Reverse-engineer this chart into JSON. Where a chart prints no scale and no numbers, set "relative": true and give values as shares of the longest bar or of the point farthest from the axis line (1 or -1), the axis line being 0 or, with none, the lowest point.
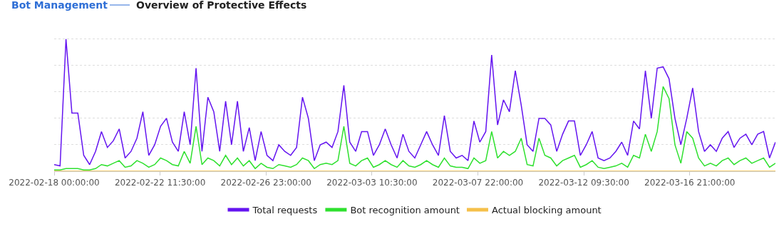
{
  "chart_data": {
    "type": "line",
    "title": "Bot Management",
    "subtitle": "Overview of Protective Effects",
    "relative": true,
    "xlim": [
      "2022-02-18T00:00",
      "2022-03-20T12:00"
    ],
    "xticks": [
      {
        "value": "2022-02-18T00:00",
        "label": "2022-02-18 00:00:00"
      },
      {
        "value": "2022-02-22T11:30",
        "label": "2022-02-22 11:30:00"
      },
      {
        "value": "2022-02-26T23:00",
        "label": "2022-02-26 23:00:00"
      },
      {
        "value": "2022-03-03T10:30",
        "label": "2022-03-03 10:30:00"
      },
      {
        "value": "2022-03-07T22:00",
        "label": "2022-03-07 22:00:00"
      },
      {
        "value": "2022-03-12T09:30",
        "label": "2022-03-12 09:30:00"
      },
      {
        "value": "2022-03-16T21:00",
        "label": "2022-03-16 21:00:00"
      }
    ],
    "grid": "y",
    "legend": "bottom",
    "marker": "none",
    "line_style": "solid",
    "series": [
      {
        "name": "Total requests",
        "color": "#6414f0",
        "values": [
          0.05,
          0.04,
          1.0,
          0.44,
          0.44,
          0.12,
          0.05,
          0.15,
          0.3,
          0.18,
          0.23,
          0.32,
          0.1,
          0.15,
          0.25,
          0.45,
          0.12,
          0.2,
          0.34,
          0.4,
          0.22,
          0.15,
          0.45,
          0.2,
          0.78,
          0.15,
          0.56,
          0.45,
          0.15,
          0.53,
          0.2,
          0.53,
          0.15,
          0.33,
          0.08,
          0.3,
          0.12,
          0.08,
          0.2,
          0.15,
          0.12,
          0.18,
          0.56,
          0.4,
          0.08,
          0.2,
          0.22,
          0.18,
          0.3,
          0.65,
          0.22,
          0.15,
          0.3,
          0.3,
          0.12,
          0.2,
          0.32,
          0.2,
          0.1,
          0.28,
          0.15,
          0.1,
          0.2,
          0.3,
          0.2,
          0.12,
          0.42,
          0.15,
          0.1,
          0.12,
          0.08,
          0.38,
          0.22,
          0.3,
          0.88,
          0.35,
          0.54,
          0.45,
          0.76,
          0.5,
          0.2,
          0.15,
          0.4,
          0.4,
          0.35,
          0.15,
          0.28,
          0.38,
          0.38,
          0.12,
          0.2,
          0.3,
          0.1,
          0.08,
          0.1,
          0.15,
          0.22,
          0.12,
          0.38,
          0.32,
          0.76,
          0.4,
          0.78,
          0.79,
          0.7,
          0.4,
          0.2,
          0.4,
          0.63,
          0.3,
          0.15,
          0.2,
          0.15,
          0.25,
          0.3,
          0.18,
          0.25,
          0.28,
          0.2,
          0.28,
          0.3,
          0.1,
          0.22
        ]
      },
      {
        "name": "Bot recognition amount",
        "color": "#2ee02e",
        "values": [
          0.01,
          0.01,
          0.02,
          0.02,
          0.02,
          0.01,
          0.01,
          0.02,
          0.05,
          0.04,
          0.06,
          0.08,
          0.03,
          0.04,
          0.08,
          0.06,
          0.03,
          0.05,
          0.1,
          0.08,
          0.05,
          0.04,
          0.15,
          0.06,
          0.34,
          0.05,
          0.1,
          0.08,
          0.04,
          0.12,
          0.05,
          0.1,
          0.04,
          0.08,
          0.02,
          0.06,
          0.03,
          0.02,
          0.05,
          0.04,
          0.03,
          0.05,
          0.1,
          0.08,
          0.02,
          0.05,
          0.06,
          0.05,
          0.08,
          0.34,
          0.06,
          0.04,
          0.08,
          0.1,
          0.03,
          0.05,
          0.08,
          0.05,
          0.03,
          0.08,
          0.04,
          0.03,
          0.05,
          0.08,
          0.05,
          0.03,
          0.1,
          0.04,
          0.03,
          0.03,
          0.02,
          0.1,
          0.06,
          0.08,
          0.3,
          0.1,
          0.15,
          0.12,
          0.15,
          0.25,
          0.05,
          0.04,
          0.25,
          0.12,
          0.1,
          0.04,
          0.08,
          0.1,
          0.12,
          0.03,
          0.05,
          0.08,
          0.03,
          0.02,
          0.03,
          0.04,
          0.06,
          0.03,
          0.12,
          0.1,
          0.28,
          0.15,
          0.3,
          0.64,
          0.55,
          0.2,
          0.06,
          0.3,
          0.25,
          0.1,
          0.04,
          0.06,
          0.04,
          0.08,
          0.1,
          0.05,
          0.08,
          0.1,
          0.06,
          0.08,
          0.1,
          0.03,
          0.06
        ]
      },
      {
        "name": "Actual blocking amount",
        "color": "#f5c04a",
        "values": [
          0,
          0,
          0,
          0,
          0,
          0,
          0,
          0,
          0,
          0,
          0,
          0,
          0,
          0,
          0,
          0,
          0,
          0,
          0,
          0,
          0,
          0,
          0,
          0,
          0,
          0,
          0,
          0,
          0,
          0,
          0,
          0,
          0,
          0,
          0,
          0,
          0,
          0,
          0,
          0,
          0,
          0,
          0,
          0,
          0,
          0,
          0,
          0,
          0,
          0,
          0,
          0,
          0,
          0,
          0,
          0,
          0,
          0,
          0,
          0,
          0,
          0,
          0,
          0,
          0,
          0,
          0,
          0,
          0,
          0,
          0,
          0,
          0,
          0,
          0,
          0,
          0,
          0,
          0,
          0,
          0,
          0,
          0,
          0,
          0,
          0,
          0,
          0,
          0,
          0,
          0,
          0,
          0,
          0,
          0,
          0,
          0,
          0,
          0,
          0,
          0,
          0,
          0,
          0,
          0,
          0,
          0,
          0,
          0,
          0,
          0,
          0,
          0,
          0,
          0,
          0,
          0,
          0,
          0,
          0,
          0,
          0,
          0
        ]
      }
    ],
    "x": [
      "2022-02-18T00:00",
      "2022-02-18T06:00",
      "2022-02-18T12:00",
      "2022-02-18T18:00",
      "2022-02-19T00:00",
      "2022-02-19T06:00",
      "2022-02-19T12:00",
      "2022-02-19T18:00",
      "2022-02-20T00:00",
      "2022-02-20T06:00",
      "2022-02-20T12:00",
      "2022-02-20T18:00",
      "2022-02-21T00:00",
      "2022-02-21T06:00",
      "2022-02-21T12:00",
      "2022-02-21T18:00",
      "2022-02-22T00:00",
      "2022-02-22T06:00",
      "2022-02-22T12:00",
      "2022-02-22T18:00",
      "2022-02-23T00:00",
      "2022-02-23T06:00",
      "2022-02-23T12:00",
      "2022-02-23T18:00",
      "2022-02-24T00:00",
      "2022-02-24T06:00",
      "2022-02-24T12:00",
      "2022-02-24T18:00",
      "2022-02-25T00:00",
      "2022-02-25T06:00",
      "2022-02-25T12:00",
      "2022-02-25T18:00",
      "2022-02-26T00:00",
      "2022-02-26T06:00",
      "2022-02-26T12:00",
      "2022-02-26T18:00",
      "2022-02-27T00:00",
      "2022-02-27T06:00",
      "2022-02-27T12:00",
      "2022-02-27T18:00",
      "2022-02-28T00:00",
      "2022-02-28T06:00",
      "2022-02-28T12:00",
      "2022-02-28T18:00",
      "2022-03-01T00:00",
      "2022-03-01T06:00",
      "2022-03-01T12:00",
      "2022-03-01T18:00",
      "2022-03-02T00:00",
      "2022-03-02T06:00",
      "2022-03-02T12:00",
      "2022-03-02T18:00",
      "2022-03-03T00:00",
      "2022-03-03T06:00",
      "2022-03-03T12:00",
      "2022-03-03T18:00",
      "2022-03-04T00:00",
      "2022-03-04T06:00",
      "2022-03-04T12:00",
      "2022-03-04T18:00",
      "2022-03-05T00:00",
      "2022-03-05T06:00",
      "2022-03-05T12:00",
      "2022-03-05T18:00",
      "2022-03-06T00:00",
      "2022-03-06T06:00",
      "2022-03-06T12:00",
      "2022-03-06T18:00",
      "2022-03-07T00:00",
      "2022-03-07T06:00",
      "2022-03-07T12:00",
      "2022-03-07T18:00",
      "2022-03-08T00:00",
      "2022-03-08T06:00",
      "2022-03-08T12:00",
      "2022-03-08T18:00",
      "2022-03-09T00:00",
      "2022-03-09T06:00",
      "2022-03-09T12:00",
      "2022-03-09T18:00",
      "2022-03-10T00:00",
      "2022-03-10T06:00",
      "2022-03-10T12:00",
      "2022-03-10T18:00",
      "2022-03-11T00:00",
      "2022-03-11T06:00",
      "2022-03-11T12:00",
      "2022-03-11T18:00",
      "2022-03-12T00:00",
      "2022-03-12T06:00",
      "2022-03-12T12:00",
      "2022-03-12T18:00",
      "2022-03-13T00:00",
      "2022-03-13T06:00",
      "2022-03-13T12:00",
      "2022-03-13T18:00",
      "2022-03-14T00:00",
      "2022-03-14T06:00",
      "2022-03-14T12:00",
      "2022-03-14T18:00",
      "2022-03-15T00:00",
      "2022-03-15T06:00",
      "2022-03-15T12:00",
      "2022-03-15T18:00",
      "2022-03-16T00:00",
      "2022-03-16T06:00",
      "2022-03-16T12:00",
      "2022-03-16T18:00",
      "2022-03-17T00:00",
      "2022-03-17T06:00",
      "2022-03-17T12:00",
      "2022-03-17T18:00",
      "2022-03-18T00:00",
      "2022-03-18T06:00",
      "2022-03-18T12:00",
      "2022-03-18T18:00",
      "2022-03-19T00:00",
      "2022-03-19T06:00",
      "2022-03-19T12:00",
      "2022-03-19T18:00",
      "2022-03-20T00:00",
      "2022-03-20T06:00",
      "2022-03-20T12:00"
    ]
  }
}
